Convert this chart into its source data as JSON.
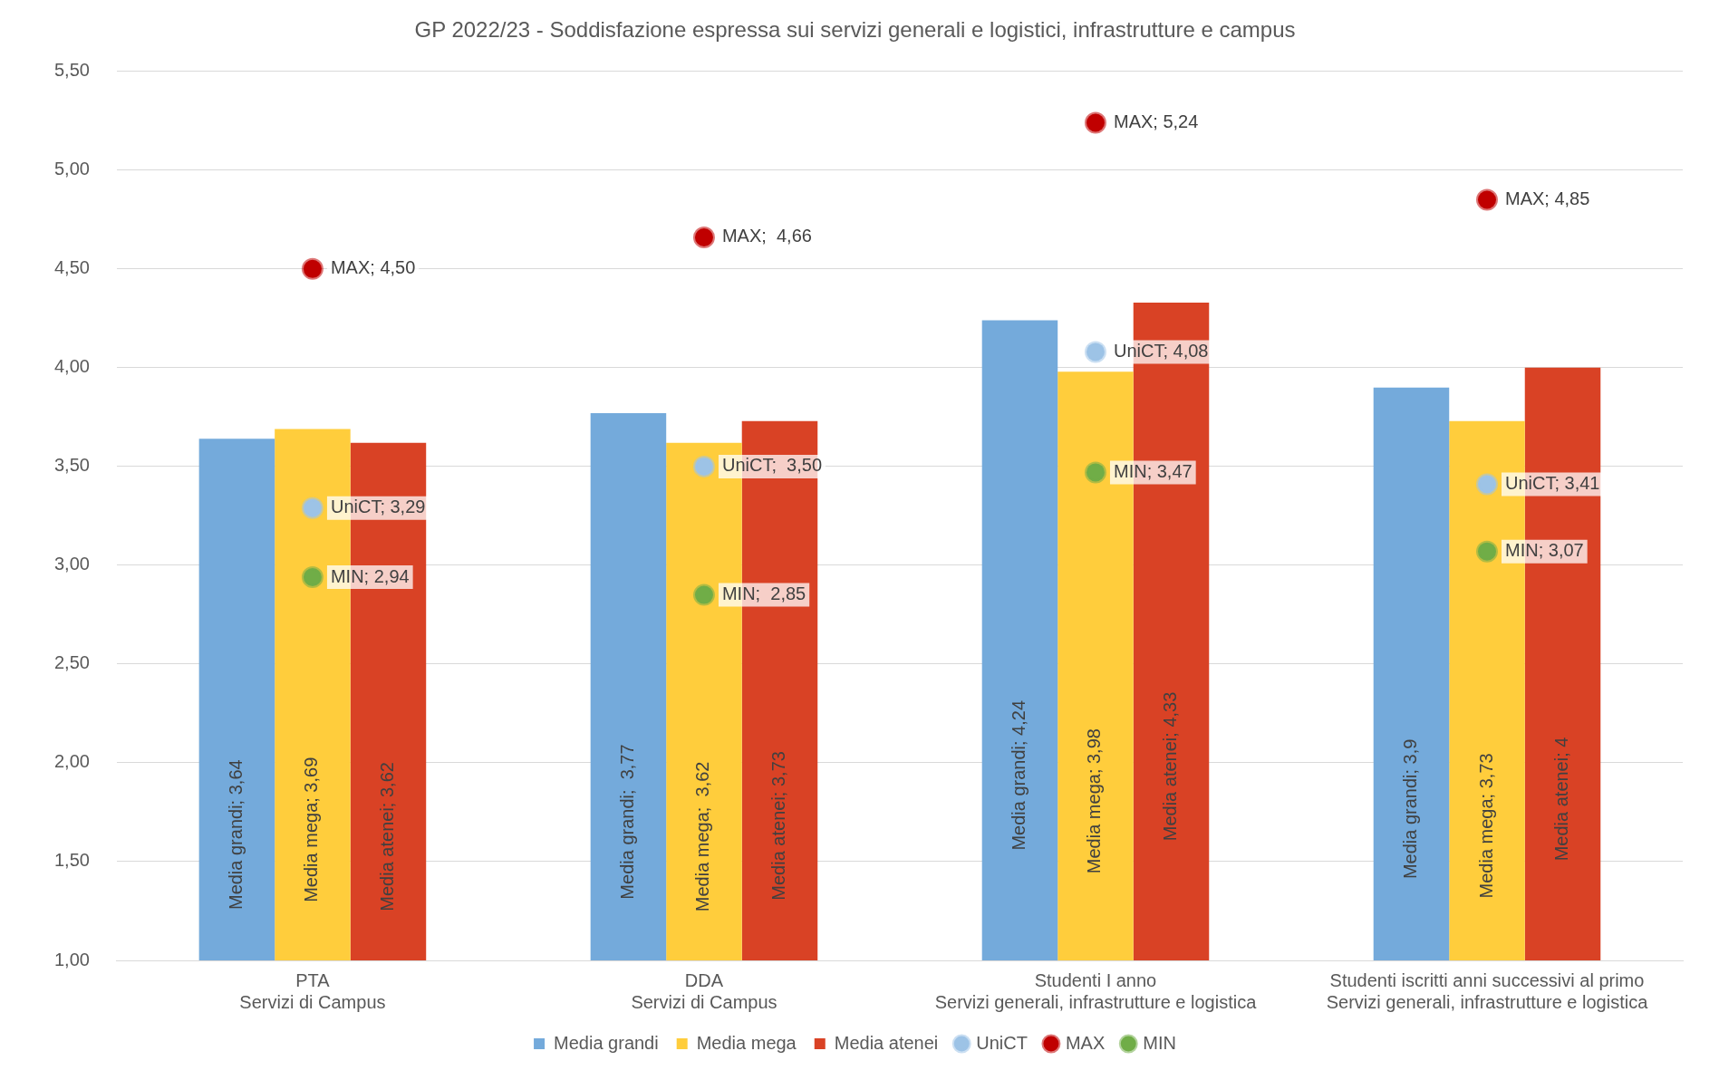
{
  "chart_data": {
    "type": "bar",
    "title": "GP 2022/23 - Soddisfazione espressa sui servizi generali e logistici, infrastrutture e campus",
    "categories": [
      "PTA\nServizi di Campus",
      "DDA\nServizi di Campus",
      "Studenti I anno\nServizi generali, infrastrutture e logistica",
      "Studenti iscritti anni successivi al primo\nServizi generali, infrastrutture e logistica"
    ],
    "series": [
      {
        "name": "Media grandi",
        "color": "#74aadb",
        "values": [
          3.64,
          3.77,
          4.24,
          3.9
        ],
        "value_labels": [
          "Media grandi; 3,64",
          "Media grandi;  3,77",
          "Media grandi; 4,24",
          "Media grandi; 3,9"
        ]
      },
      {
        "name": "Media mega",
        "color": "#ffcd3c",
        "values": [
          3.69,
          3.62,
          3.98,
          3.73
        ],
        "value_labels": [
          "Media mega; 3,69",
          "Media mega;  3,62",
          "Media mega; 3,98",
          "Media mega; 3,73"
        ]
      },
      {
        "name": "Media atenei",
        "color": "#d94225",
        "values": [
          3.62,
          3.73,
          4.33,
          4
        ],
        "value_labels": [
          "Media atenei; 3,62",
          "Media atenei; 3,73",
          "Media atenei; 4,33",
          "Media atenei; 4"
        ]
      },
      {
        "name": "UniCT",
        "type": "scatter",
        "color": "#9dc3e6",
        "values": [
          3.29,
          3.5,
          4.08,
          3.41
        ],
        "value_labels": [
          "UniCT; 3,29",
          "UniCT;  3,50",
          "UniCT; 4,08",
          "UniCT; 3,41"
        ]
      },
      {
        "name": "MAX",
        "type": "scatter",
        "color": "#c00000",
        "values": [
          4.5,
          4.66,
          5.24,
          4.85
        ],
        "value_labels": [
          "MAX; 4,50",
          "MAX;  4,66",
          "MAX; 5,24",
          "MAX; 4,85"
        ]
      },
      {
        "name": "MIN",
        "type": "scatter",
        "color": "#70ad47",
        "values": [
          2.94,
          2.85,
          3.47,
          3.07
        ],
        "value_labels": [
          "MIN; 2,94",
          "MIN;  2,85",
          "MIN; 3,47",
          "MIN; 3,07"
        ]
      }
    ],
    "ylim": [
      1,
      5.5
    ],
    "yticks": [
      {
        "value": 1,
        "label": "1,00"
      },
      {
        "value": 1.5,
        "label": "1,50"
      },
      {
        "value": 2,
        "label": "2,00"
      },
      {
        "value": 2.5,
        "label": "2,50"
      },
      {
        "value": 3,
        "label": "3,00"
      },
      {
        "value": 3.5,
        "label": "3,50"
      },
      {
        "value": 4,
        "label": "4,00"
      },
      {
        "value": 4.5,
        "label": "4,50"
      },
      {
        "value": 5,
        "label": "5,00"
      },
      {
        "value": 5.5,
        "label": "5,50"
      }
    ],
    "grid": "y",
    "legend": "bottom",
    "marker": "circle"
  }
}
